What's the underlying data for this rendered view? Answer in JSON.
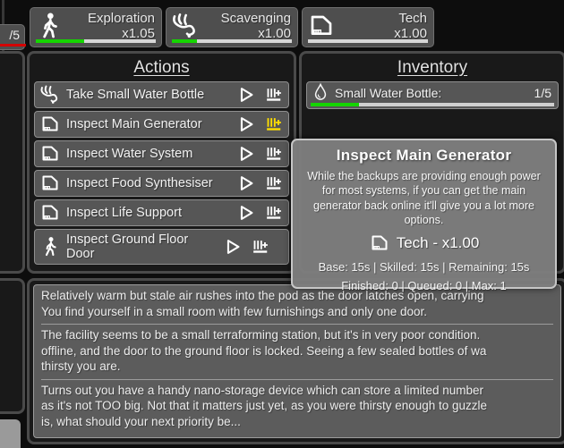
{
  "colors": {
    "progress_green": "#15d400",
    "progress_red": "#d40000",
    "queue_highlight_yellow": "#ffdf00"
  },
  "left_fragment": {
    "counter": "/5",
    "counter_progress": 100
  },
  "skills": [
    {
      "name": "Exploration",
      "multiplier": "x1.05",
      "icon": "walking-person-icon",
      "progress": 40
    },
    {
      "name": "Scavenging",
      "multiplier": "x1.00",
      "icon": "grab-hand-icon",
      "progress": 21
    },
    {
      "name": "Tech",
      "multiplier": "x1.00",
      "icon": "tech-console-icon",
      "progress": 0
    }
  ],
  "actions": {
    "title": "Actions",
    "items": [
      {
        "label": "Take Small Water Bottle",
        "icon": "grab-hand-icon",
        "queue_highlight": false
      },
      {
        "label": "Inspect Main Generator",
        "icon": "tech-console-icon",
        "queue_highlight": true
      },
      {
        "label": "Inspect Water System",
        "icon": "tech-console-icon",
        "queue_highlight": false
      },
      {
        "label": "Inspect Food Synthesiser",
        "icon": "tech-console-icon",
        "queue_highlight": false
      },
      {
        "label": "Inspect Life Support",
        "icon": "tech-console-icon",
        "queue_highlight": false
      },
      {
        "label": "Inspect Ground Floor Door",
        "icon": "walking-person-icon",
        "queue_highlight": false
      }
    ]
  },
  "inventory": {
    "title": "Inventory",
    "items": [
      {
        "label": "Small Water Bottle:",
        "count": "1/5",
        "icon": "water-drop-icon",
        "progress": 20
      }
    ]
  },
  "tooltip": {
    "title": "Inspect Main Generator",
    "description": "While the backups are providing enough power for most systems, if you can get the main generator back online it'll give you a lot more options.",
    "skill_line": "Tech - x1.00",
    "timing_line": "Base: 15s | Skilled: 15s | Remaining: 15s",
    "counts_line": "Finished: 0 | Queued: 0 | Max: 1"
  },
  "story": {
    "paragraphs": [
      [
        "Relatively warm but stale air rushes into the pod as the door latches open, carrying",
        "You find yourself in a small room with few furnishings and only one door."
      ],
      [
        "The facility seems to be a small terraforming station, but it's in very poor condition.",
        "offline, and the door to the ground floor is locked. Seeing a few sealed bottles of wa",
        "thirsty you are."
      ],
      [
        "Turns out you have a handy nano-storage device which can store a limited number",
        "as it's not TOO big. Not that it matters just yet, as you were thirsty enough to guzzle",
        "is, what should your next priority be..."
      ]
    ]
  }
}
